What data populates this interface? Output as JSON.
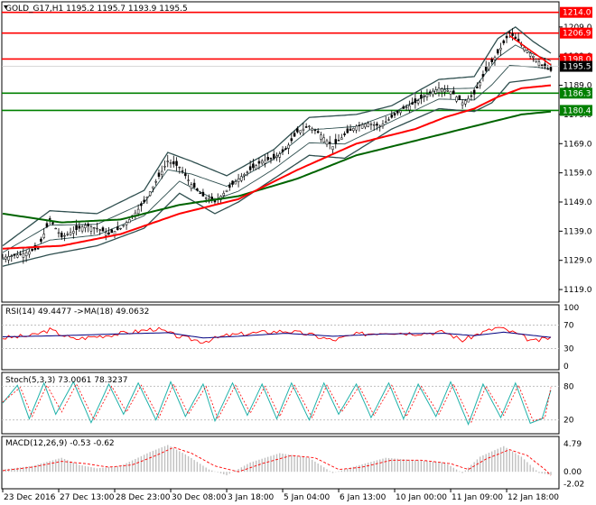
{
  "header": {
    "symbol": "GOLD_G17,H1",
    "ohlc": "1195.2 1195.7 1193.9 1195.5"
  },
  "colors": {
    "background": "#ffffff",
    "candle": "#000000",
    "ma_red": "#ff0000",
    "ma_green": "#006400",
    "bands": "#2f4f4f",
    "level_red": "#ff0000",
    "level_green": "#008000",
    "rsi": "#ff0000",
    "rsi_ma": "#000080",
    "stoch_main": "#20b2aa",
    "stoch_signal": "#ff0000",
    "macd_hist": "#c0c0c0",
    "macd_signal": "#ff0000"
  },
  "chart_data": {
    "type": "line",
    "main": {
      "current_price": 1195.5,
      "ylim": [
        1115,
        1217
      ],
      "yticks": [
        1209.0,
        1199.0,
        1189.0,
        1179.0,
        1169.0,
        1159.0,
        1149.0,
        1139.0,
        1129.0,
        1119.0
      ],
      "levels": [
        {
          "value": 1214.0,
          "label": "1214.0",
          "color": "#ff0000"
        },
        {
          "value": 1206.9,
          "label": "1206.9",
          "color": "#ff0000"
        },
        {
          "value": 1198.0,
          "label": "1198.0",
          "color": "#ff0000"
        },
        {
          "value": 1186.3,
          "label": "1186.3",
          "color": "#008000"
        },
        {
          "value": 1180.4,
          "label": "1180.4",
          "color": "#008000"
        }
      ],
      "price_path": [
        [
          0,
          1130
        ],
        [
          6,
          1131
        ],
        [
          12,
          1133
        ],
        [
          16,
          1143
        ],
        [
          20,
          1137
        ],
        [
          24,
          1139
        ],
        [
          28,
          1141
        ],
        [
          32,
          1140
        ],
        [
          36,
          1138
        ],
        [
          40,
          1140
        ],
        [
          44,
          1144
        ],
        [
          48,
          1149
        ],
        [
          52,
          1156
        ],
        [
          56,
          1163
        ],
        [
          60,
          1161
        ],
        [
          64,
          1155
        ],
        [
          68,
          1151
        ],
        [
          72,
          1149
        ],
        [
          76,
          1153
        ],
        [
          80,
          1157
        ],
        [
          84,
          1160
        ],
        [
          88,
          1163
        ],
        [
          92,
          1164
        ],
        [
          96,
          1167
        ],
        [
          100,
          1173
        ],
        [
          104,
          1175
        ],
        [
          108,
          1172
        ],
        [
          112,
          1168
        ],
        [
          116,
          1172
        ],
        [
          120,
          1175
        ],
        [
          124,
          1176
        ],
        [
          128,
          1175
        ],
        [
          132,
          1178
        ],
        [
          136,
          1181
        ],
        [
          140,
          1183
        ],
        [
          144,
          1186
        ],
        [
          148,
          1188
        ],
        [
          152,
          1187
        ],
        [
          156,
          1183
        ],
        [
          160,
          1186
        ],
        [
          164,
          1194
        ],
        [
          168,
          1200
        ],
        [
          172,
          1207
        ],
        [
          176,
          1203
        ],
        [
          180,
          1199
        ],
        [
          183,
          1196
        ],
        [
          186,
          1194
        ]
      ],
      "ma_fast": [
        [
          0,
          1133
        ],
        [
          20,
          1134
        ],
        [
          40,
          1138
        ],
        [
          60,
          1145
        ],
        [
          80,
          1150
        ],
        [
          100,
          1160
        ],
        [
          120,
          1169
        ],
        [
          140,
          1174
        ],
        [
          150,
          1178
        ],
        [
          160,
          1181
        ],
        [
          168,
          1185
        ],
        [
          176,
          1188
        ],
        [
          186,
          1189
        ]
      ],
      "ma_slow": [
        [
          0,
          1145
        ],
        [
          20,
          1142
        ],
        [
          40,
          1143
        ],
        [
          60,
          1148
        ],
        [
          80,
          1151
        ],
        [
          100,
          1157
        ],
        [
          120,
          1165
        ],
        [
          140,
          1170
        ],
        [
          160,
          1175
        ],
        [
          176,
          1179
        ],
        [
          186,
          1180
        ]
      ],
      "band_upper": [
        [
          0,
          1134
        ],
        [
          16,
          1146
        ],
        [
          32,
          1145
        ],
        [
          48,
          1153
        ],
        [
          56,
          1166
        ],
        [
          64,
          1163
        ],
        [
          76,
          1158
        ],
        [
          92,
          1167
        ],
        [
          104,
          1178
        ],
        [
          120,
          1179
        ],
        [
          132,
          1182
        ],
        [
          148,
          1191
        ],
        [
          160,
          1192
        ],
        [
          168,
          1205
        ],
        [
          174,
          1209
        ],
        [
          180,
          1204
        ],
        [
          186,
          1200
        ]
      ],
      "band_lower": [
        [
          0,
          1127
        ],
        [
          16,
          1131
        ],
        [
          32,
          1134
        ],
        [
          48,
          1140
        ],
        [
          60,
          1152
        ],
        [
          72,
          1145
        ],
        [
          80,
          1149
        ],
        [
          92,
          1157
        ],
        [
          104,
          1165
        ],
        [
          116,
          1164
        ],
        [
          132,
          1174
        ],
        [
          148,
          1181
        ],
        [
          160,
          1180
        ],
        [
          166,
          1183
        ],
        [
          172,
          1190
        ],
        [
          180,
          1191
        ],
        [
          186,
          1192
        ]
      ],
      "trend_line": [
        [
          172,
          1206
        ],
        [
          186,
          1196
        ]
      ]
    },
    "rsi": {
      "label": "RSI(14) 49.4477 ->MA(18) 49.0632",
      "ylim": [
        0,
        100
      ],
      "yticks": [
        100,
        70,
        30,
        0
      ],
      "rsi": [
        [
          0,
          48
        ],
        [
          10,
          52
        ],
        [
          16,
          62
        ],
        [
          24,
          46
        ],
        [
          34,
          52
        ],
        [
          44,
          58
        ],
        [
          52,
          64
        ],
        [
          60,
          50
        ],
        [
          68,
          42
        ],
        [
          76,
          52
        ],
        [
          84,
          56
        ],
        [
          96,
          60
        ],
        [
          104,
          54
        ],
        [
          112,
          44
        ],
        [
          120,
          54
        ],
        [
          130,
          58
        ],
        [
          140,
          56
        ],
        [
          150,
          58
        ],
        [
          156,
          44
        ],
        [
          162,
          56
        ],
        [
          168,
          66
        ],
        [
          174,
          56
        ],
        [
          180,
          42
        ],
        [
          186,
          49
        ]
      ],
      "ma": [
        [
          0,
          50
        ],
        [
          20,
          52
        ],
        [
          40,
          55
        ],
        [
          56,
          57
        ],
        [
          68,
          48
        ],
        [
          80,
          51
        ],
        [
          96,
          56
        ],
        [
          112,
          51
        ],
        [
          130,
          55
        ],
        [
          150,
          56
        ],
        [
          160,
          52
        ],
        [
          170,
          58
        ],
        [
          186,
          49
        ]
      ]
    },
    "stoch": {
      "label": "Stoch(5,3,3) 73.0061 78.3237",
      "ylim": [
        0,
        100
      ],
      "yticks": [
        80,
        20
      ],
      "main": [
        [
          0,
          50
        ],
        [
          5,
          82
        ],
        [
          9,
          22
        ],
        [
          14,
          86
        ],
        [
          18,
          30
        ],
        [
          24,
          88
        ],
        [
          30,
          15
        ],
        [
          36,
          84
        ],
        [
          41,
          30
        ],
        [
          46,
          86
        ],
        [
          52,
          20
        ],
        [
          57,
          88
        ],
        [
          62,
          26
        ],
        [
          68,
          84
        ],
        [
          72,
          18
        ],
        [
          78,
          86
        ],
        [
          83,
          28
        ],
        [
          88,
          84
        ],
        [
          93,
          22
        ],
        [
          98,
          86
        ],
        [
          104,
          20
        ],
        [
          109,
          86
        ],
        [
          114,
          30
        ],
        [
          120,
          84
        ],
        [
          125,
          24
        ],
        [
          131,
          86
        ],
        [
          136,
          22
        ],
        [
          141,
          84
        ],
        [
          147,
          26
        ],
        [
          152,
          88
        ],
        [
          158,
          12
        ],
        [
          163,
          84
        ],
        [
          169,
          24
        ],
        [
          174,
          86
        ],
        [
          179,
          14
        ],
        [
          183,
          22
        ],
        [
          186,
          73
        ]
      ],
      "signal": [
        [
          0,
          52
        ],
        [
          6,
          78
        ],
        [
          10,
          26
        ],
        [
          15,
          82
        ],
        [
          20,
          34
        ],
        [
          25,
          84
        ],
        [
          31,
          20
        ],
        [
          37,
          80
        ],
        [
          42,
          34
        ],
        [
          47,
          82
        ],
        [
          53,
          24
        ],
        [
          58,
          84
        ],
        [
          63,
          30
        ],
        [
          69,
          80
        ],
        [
          73,
          22
        ],
        [
          79,
          82
        ],
        [
          84,
          32
        ],
        [
          89,
          80
        ],
        [
          94,
          26
        ],
        [
          99,
          82
        ],
        [
          105,
          24
        ],
        [
          110,
          82
        ],
        [
          115,
          34
        ],
        [
          121,
          80
        ],
        [
          126,
          28
        ],
        [
          132,
          82
        ],
        [
          137,
          26
        ],
        [
          142,
          80
        ],
        [
          148,
          30
        ],
        [
          153,
          84
        ],
        [
          159,
          16
        ],
        [
          164,
          80
        ],
        [
          170,
          28
        ],
        [
          175,
          82
        ],
        [
          180,
          18
        ],
        [
          184,
          24
        ],
        [
          186,
          78
        ]
      ]
    },
    "macd": {
      "label": "MACD(12,26,9) -0.53 -0.62",
      "ylim": [
        -2.6,
        5.6
      ],
      "yticks": [
        4.79,
        0.0,
        -2.02
      ],
      "histogram": [
        [
          0,
          0.4
        ],
        [
          10,
          1.0
        ],
        [
          20,
          2.4
        ],
        [
          26,
          1.2
        ],
        [
          32,
          0.6
        ],
        [
          40,
          1.0
        ],
        [
          50,
          3.4
        ],
        [
          56,
          4.6
        ],
        [
          62,
          3.0
        ],
        [
          70,
          0.4
        ],
        [
          76,
          -0.6
        ],
        [
          84,
          1.6
        ],
        [
          94,
          3.2
        ],
        [
          104,
          2.4
        ],
        [
          112,
          -0.2
        ],
        [
          120,
          1.0
        ],
        [
          130,
          2.4
        ],
        [
          140,
          2.0
        ],
        [
          150,
          1.6
        ],
        [
          156,
          -0.2
        ],
        [
          162,
          2.6
        ],
        [
          170,
          4.4
        ],
        [
          176,
          2.6
        ],
        [
          182,
          -0.2
        ],
        [
          186,
          -0.53
        ]
      ],
      "signal": [
        [
          0,
          0.2
        ],
        [
          10,
          0.8
        ],
        [
          20,
          1.8
        ],
        [
          28,
          1.4
        ],
        [
          36,
          0.8
        ],
        [
          44,
          1.2
        ],
        [
          52,
          2.8
        ],
        [
          58,
          4.2
        ],
        [
          64,
          3.2
        ],
        [
          72,
          1.0
        ],
        [
          80,
          0.0
        ],
        [
          88,
          1.4
        ],
        [
          98,
          2.8
        ],
        [
          106,
          2.4
        ],
        [
          114,
          0.4
        ],
        [
          122,
          0.8
        ],
        [
          132,
          2.0
        ],
        [
          142,
          2.0
        ],
        [
          152,
          1.4
        ],
        [
          158,
          0.4
        ],
        [
          164,
          2.2
        ],
        [
          172,
          3.8
        ],
        [
          178,
          2.8
        ],
        [
          184,
          0.4
        ],
        [
          186,
          -0.62
        ]
      ]
    },
    "x_labels": [
      "23 Dec 2016",
      "27 Dec 13:00",
      "28 Dec 23:00",
      "30 Dec 08:00",
      "3 Jan 18:00",
      "5 Jan 04:00",
      "6 Jan 13:00",
      "10 Jan 00:00",
      "11 Jan 09:00",
      "12 Jan 18:00"
    ],
    "x_label_index": [
      0,
      19,
      38,
      57,
      76,
      95,
      114,
      133,
      152,
      171
    ],
    "n_bars": 187
  }
}
